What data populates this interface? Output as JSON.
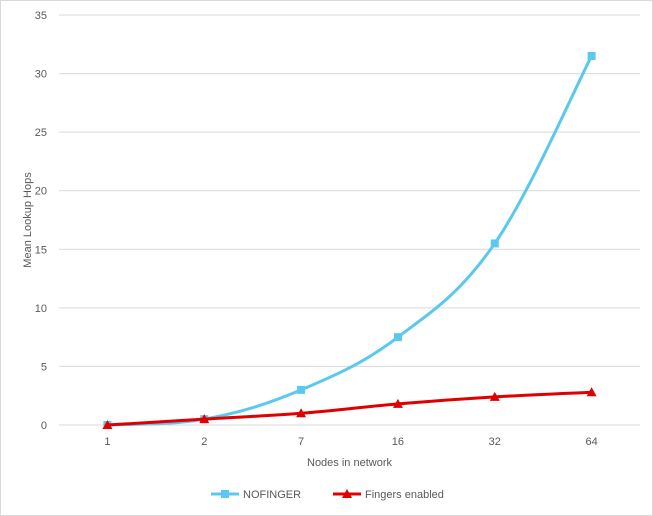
{
  "chart_data": {
    "type": "line",
    "categories": [
      "1",
      "2",
      "7",
      "16",
      "32",
      "64"
    ],
    "series": [
      {
        "name": "NOFINGER",
        "values": [
          0,
          0.5,
          3,
          7.5,
          15.5,
          31.5
        ],
        "color": "#5bc8f0",
        "marker": "square"
      },
      {
        "name": "Fingers enabled",
        "values": [
          0,
          0.5,
          1,
          1.8,
          2.4,
          2.8
        ],
        "color": "#e00000",
        "marker": "triangle"
      }
    ],
    "xlabel": "Nodes  in network",
    "ylabel": "Mean Lookup Hops",
    "ylim": [
      0,
      35
    ],
    "yticks": [
      0,
      5,
      10,
      15,
      20,
      25,
      30,
      35
    ],
    "grid": true,
    "legend": "bottom"
  }
}
